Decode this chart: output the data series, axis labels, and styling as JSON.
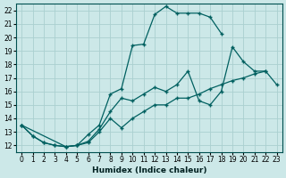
{
  "xlabel": "Humidex (Indice chaleur)",
  "bg_color": "#cce8e8",
  "grid_color": "#aad0d0",
  "line_color": "#006060",
  "xlim": [
    -0.5,
    23.5
  ],
  "ylim": [
    11.5,
    22.5
  ],
  "xticks": [
    0,
    1,
    2,
    3,
    4,
    5,
    6,
    7,
    8,
    9,
    10,
    11,
    12,
    13,
    14,
    15,
    16,
    17,
    18,
    19,
    20,
    21,
    22,
    23
  ],
  "yticks": [
    12,
    13,
    14,
    15,
    16,
    17,
    18,
    19,
    20,
    21,
    22
  ],
  "curve_upper": {
    "x": [
      0,
      1,
      2,
      3,
      4,
      5,
      6,
      7,
      8,
      9,
      10,
      11,
      12,
      13,
      14,
      15,
      16,
      17,
      18,
      19,
      20
    ],
    "y": [
      13.5,
      12.7,
      12.2,
      12.0,
      11.9,
      12.0,
      12.8,
      13.5,
      15.8,
      16.2,
      19.4,
      19.5,
      21.7,
      22.3,
      21.8,
      21.8,
      21.8,
      21.5,
      20.3,
      null,
      null
    ]
  },
  "curve_mid": {
    "x": [
      0,
      1,
      2,
      3,
      4,
      5,
      6,
      7,
      8,
      9,
      10,
      11,
      12,
      13,
      14,
      15,
      16,
      17,
      18,
      19,
      20,
      21,
      22,
      23
    ],
    "y": [
      13.5,
      12.7,
      12.2,
      12.0,
      11.9,
      12.0,
      12.3,
      13.2,
      14.5,
      15.5,
      15.3,
      15.8,
      16.3,
      16.0,
      16.5,
      17.5,
      15.3,
      15.0,
      16.0,
      19.3,
      18.2,
      17.5,
      17.5,
      null
    ]
  },
  "curve_lower": {
    "x": [
      0,
      4,
      5,
      6,
      7,
      8,
      9,
      10,
      11,
      12,
      13,
      14,
      15,
      16,
      17,
      18,
      19,
      20,
      21,
      22,
      23
    ],
    "y": [
      13.5,
      11.9,
      12.0,
      12.2,
      13.0,
      14.0,
      13.3,
      14.0,
      14.5,
      15.0,
      15.0,
      15.5,
      15.5,
      15.8,
      16.2,
      16.5,
      16.8,
      17.0,
      17.3,
      17.5,
      16.5
    ]
  }
}
